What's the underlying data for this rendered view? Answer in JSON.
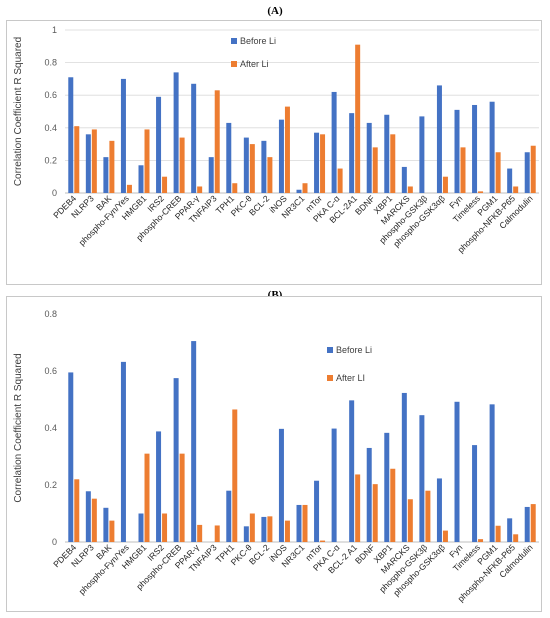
{
  "panels": [
    {
      "label": "(A)"
    },
    {
      "label": "(B)"
    }
  ],
  "colors": {
    "before": "#4472C4",
    "after": "#ED7D31",
    "grid": "#d9d9d9"
  },
  "chart_data": [
    {
      "type": "bar",
      "title": "",
      "ylabel": "Correlation Coefficient R Squared",
      "ylim": [
        0,
        1
      ],
      "yticks": [
        0,
        0.2,
        0.4,
        0.6,
        0.8,
        1
      ],
      "ytick_labels": [
        "0",
        "0.2",
        "0.4",
        "0.6",
        "0.8",
        "1"
      ],
      "grid": true,
      "legend_placement": "top-center",
      "categories": [
        "PDEB4",
        "NLRP3",
        "BAK",
        "phospho-Fyn/Yes",
        "HMGB1",
        "IRS2",
        "phospho-CREB",
        "PPAR-γ",
        "TNFAIP3",
        "TPH1",
        "PKC-θ",
        "BCL-2",
        "iNOS",
        "NR3C1",
        "mTor",
        "PKA C-α",
        "BCL-2A1",
        "BDNF",
        "XBP1",
        "MARCKS",
        "phospho-GSK3β",
        "phospho-GSK3αβ",
        "Fyn",
        "Timeless",
        "PGM1",
        "phospho-NFKB-P65",
        "Calmodulin"
      ],
      "series": [
        {
          "name": "Before Li",
          "values": [
            0.71,
            0.36,
            0.22,
            0.7,
            0.17,
            0.59,
            0.74,
            0.67,
            0.22,
            0.43,
            0.34,
            0.32,
            0.45,
            0.02,
            0.37,
            0.62,
            0.49,
            0.43,
            0.48,
            0.16,
            0.47,
            0.66,
            0.51,
            0.54,
            0.56,
            0.15,
            0.25
          ]
        },
        {
          "name": "After Li",
          "values": [
            0.41,
            0.39,
            0.32,
            0.05,
            0.39,
            0.1,
            0.34,
            0.04,
            0.63,
            0.06,
            0.3,
            0.22,
            0.53,
            0.06,
            0.36,
            0.15,
            0.91,
            0.28,
            0.36,
            0.04,
            0.0,
            0.1,
            0.28,
            0.01,
            0.25,
            0.04,
            0.29
          ]
        }
      ]
    },
    {
      "type": "bar",
      "title": "",
      "ylabel": "Correlation Coefficient R Squared",
      "ylim": [
        0,
        0.8
      ],
      "yticks": [
        0,
        0.2,
        0.4,
        0.6,
        0.8
      ],
      "ytick_labels": [
        "0",
        "0.2",
        "0.4",
        "0.6",
        "0.8"
      ],
      "grid": false,
      "legend_placement": "top-center",
      "categories": [
        "PDEB4",
        "NLRP3",
        "BAK",
        "phospho-Fyn/Yes",
        "HMGB1",
        "IRS2",
        "phospho-CREB",
        "PPAR-γ",
        "TNFAIP3",
        "TPH1",
        "PKC-θ",
        "BCL-2",
        "iNOS",
        "NR3C1",
        "mTor",
        "PKA C-α",
        "BCL-2 A1",
        "BDNF",
        "XBP1",
        "MARCKS",
        "phospho-GSK3β",
        "phospho-GSK3αβ",
        "Fyn",
        "Timeless",
        "PGM1",
        "phospho-NFKB-P65",
        "Calmodulin"
      ],
      "series": [
        {
          "name": "Before Li",
          "values": [
            0.595,
            0.178,
            0.12,
            0.632,
            0.1,
            0.388,
            0.575,
            0.705,
            0.0,
            0.18,
            0.055,
            0.088,
            0.397,
            0.13,
            0.215,
            0.398,
            0.497,
            0.33,
            0.383,
            0.523,
            0.445,
            0.223,
            0.492,
            0.34,
            0.483,
            0.083,
            0.123
          ]
        },
        {
          "name": "After LI",
          "values": [
            0.22,
            0.152,
            0.075,
            0.0,
            0.31,
            0.1,
            0.31,
            0.06,
            0.058,
            0.465,
            0.1,
            0.09,
            0.075,
            0.13,
            0.005,
            0.0,
            0.237,
            0.203,
            0.257,
            0.15,
            0.18,
            0.04,
            0.0,
            0.01,
            0.057,
            0.027,
            0.133
          ]
        }
      ]
    }
  ]
}
